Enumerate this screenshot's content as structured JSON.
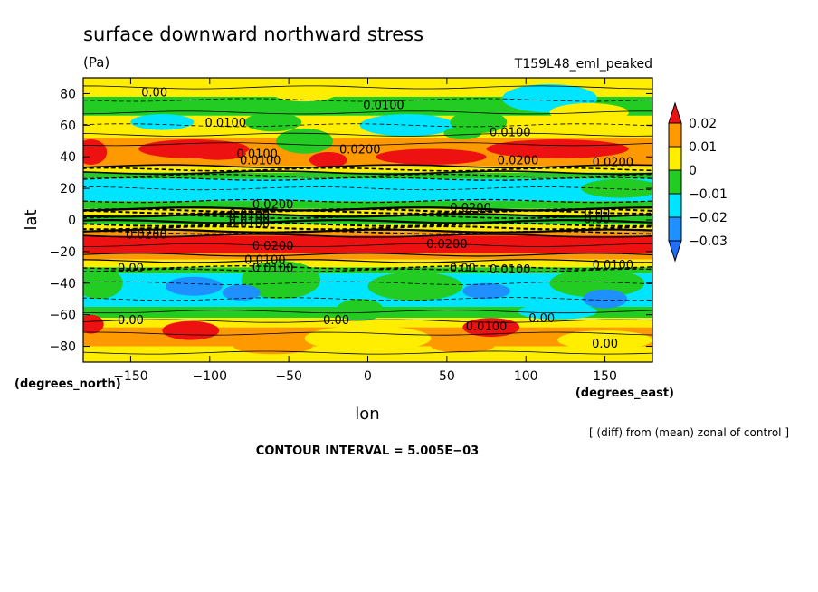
{
  "chart_data": {
    "type": "heatmap",
    "title": "surface downward northward stress",
    "units": "(Pa)",
    "experiment": "T159L48_eml_peaked",
    "xlabel": "lon",
    "ylabel": "lat",
    "x_units": "(degrees_east)",
    "y_units": "(degrees_north)",
    "xlim": [
      -180,
      180
    ],
    "ylim": [
      -90,
      90
    ],
    "x_ticks": [
      -150,
      -100,
      -50,
      0,
      50,
      100,
      150
    ],
    "y_ticks": [
      -80,
      -60,
      -40,
      -20,
      0,
      20,
      40,
      60,
      80
    ],
    "x_tick_labels": [
      "−150",
      "−100",
      "−50",
      "0",
      "50",
      "100",
      "150"
    ],
    "y_tick_labels": [
      "−80",
      "−60",
      "−40",
      "−20",
      "0",
      "20",
      "40",
      "60",
      "80"
    ],
    "colorbar": {
      "levels": [
        -0.03,
        -0.02,
        -0.01,
        0,
        0.01,
        0.02
      ],
      "labels": [
        "−0.03",
        "−0.02",
        "−0.01",
        "0",
        "0.01",
        "0.02"
      ],
      "colors": [
        "#1e90ff",
        "#00e5ff",
        "#22cc22",
        "#ffee00",
        "#ff9900",
        "#ee1111"
      ],
      "low_color": "#1e6eff",
      "high_color": "#ee1111"
    },
    "contour_labels": [
      "0.00",
      "0.0100",
      "0.0200"
    ],
    "note": "[ (diff) from (mean) zonal of control ]",
    "contour_interval_text": "CONTOUR INTERVAL = 5.005E−03"
  }
}
